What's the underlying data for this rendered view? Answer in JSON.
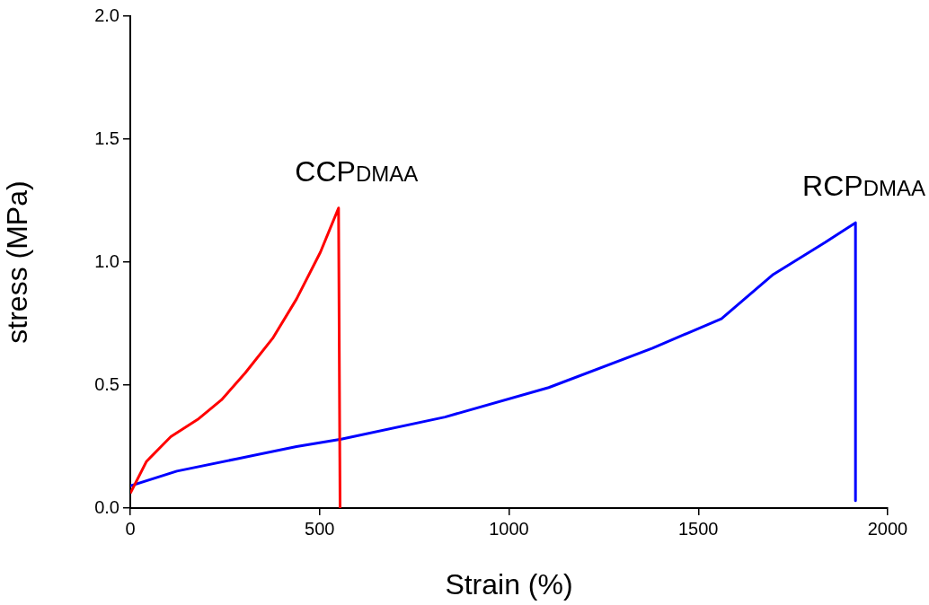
{
  "chart_data": {
    "type": "line",
    "xlabel": "Strain (%)",
    "ylabel": "stress (MPa)",
    "xlim": [
      0,
      2000
    ],
    "xticks": [
      0,
      500,
      1000,
      1500,
      2000
    ],
    "ylim": [
      0,
      2.0
    ],
    "yticks": [
      {
        "value": 0,
        "label": "0.0"
      },
      {
        "value": 0.5,
        "label": "0.5"
      },
      {
        "value": 1,
        "label": "1.0"
      },
      {
        "value": 1.5,
        "label": "1.5"
      },
      {
        "value": 2,
        "label": "2.0"
      }
    ],
    "grid": false,
    "legend": false,
    "series": [
      {
        "name": "CCP$_{DMAA}$",
        "color": "#ff0000",
        "x": [
          0,
          43,
          107,
          178,
          241,
          304,
          376,
          439,
          502,
          550,
          554
        ],
        "values": [
          0.06,
          0.19,
          0.29,
          0.36,
          0.44,
          0.55,
          0.69,
          0.85,
          1.04,
          1.22,
          0
        ]
      },
      {
        "name": "RCP$_{DMAA}$",
        "color": "#0000ff",
        "x": [
          0,
          123,
          281,
          439,
          557,
          831,
          1105,
          1379,
          1561,
          1698,
          1835,
          1915,
          1915
        ],
        "values": [
          0.09,
          0.15,
          0.2,
          0.25,
          0.28,
          0.37,
          0.49,
          0.65,
          0.77,
          0.95,
          1.08,
          1.16,
          0.03
        ]
      }
    ]
  }
}
